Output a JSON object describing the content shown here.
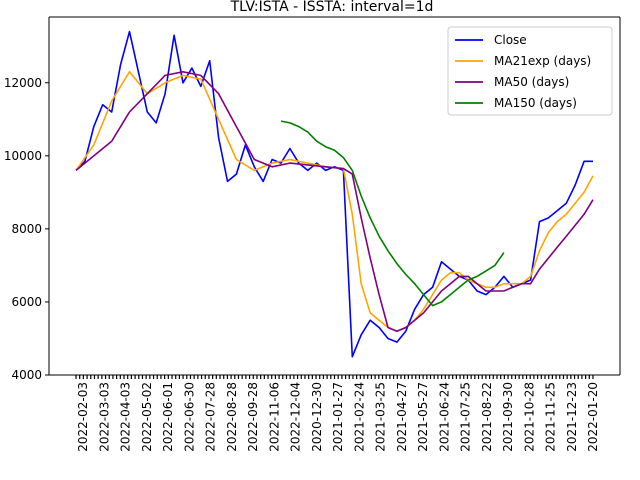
{
  "chart_data": {
    "type": "line",
    "title": "TLV:ISTA - ISSTA: interval=1d",
    "xlabel": "",
    "ylabel": "",
    "ylim": [
      4000,
      13800
    ],
    "y_ticks": [
      4000,
      6000,
      8000,
      10000,
      12000
    ],
    "y_tick_labels": [
      "4000",
      "6000",
      "8000",
      "10000",
      "12000"
    ],
    "x_tick_labels": [
      "2022-02-03",
      "2022-03-03",
      "2022-04-03",
      "2022-05-02",
      "2022-06-01",
      "2022-06-30",
      "2022-07-28",
      "2022-08-28",
      "2022-09-28",
      "2022-11-06",
      "2022-12-04",
      "2020-12-30",
      "2021-01-27",
      "2021-02-24",
      "2021-03-25",
      "2021-04-27",
      "2021-05-27",
      "2021-06-24",
      "2021-07-25",
      "2021-08-22",
      "2021-09-30",
      "2021-10-28",
      "2021-11-25",
      "2021-12-23",
      "2022-01-20"
    ],
    "grid": false,
    "legend_position": "upper right",
    "series": [
      {
        "name": "Close",
        "color": "#0000ff",
        "points": [
          [
            0,
            9600
          ],
          [
            1,
            9850
          ],
          [
            2,
            10800
          ],
          [
            3,
            11400
          ],
          [
            4,
            11200
          ],
          [
            5,
            12500
          ],
          [
            6,
            13400
          ],
          [
            7,
            12300
          ],
          [
            8,
            11200
          ],
          [
            9,
            10900
          ],
          [
            10,
            11700
          ],
          [
            11,
            13300
          ],
          [
            12,
            12000
          ],
          [
            13,
            12400
          ],
          [
            14,
            11900
          ],
          [
            15,
            12600
          ],
          [
            16,
            10500
          ],
          [
            17,
            9300
          ],
          [
            18,
            9500
          ],
          [
            19,
            10300
          ],
          [
            20,
            9700
          ],
          [
            21,
            9300
          ],
          [
            22,
            9900
          ],
          [
            23,
            9800
          ],
          [
            24,
            10200
          ],
          [
            25,
            9800
          ],
          [
            26,
            9600
          ],
          [
            27,
            9800
          ],
          [
            28,
            9600
          ],
          [
            29,
            9700
          ],
          [
            30,
            9600
          ],
          [
            31,
            4500
          ],
          [
            32,
            5100
          ],
          [
            33,
            5500
          ],
          [
            34,
            5300
          ],
          [
            35,
            5000
          ],
          [
            36,
            4900
          ],
          [
            37,
            5200
          ],
          [
            38,
            5800
          ],
          [
            39,
            6200
          ],
          [
            40,
            6400
          ],
          [
            41,
            7100
          ],
          [
            42,
            6900
          ],
          [
            43,
            6700
          ],
          [
            44,
            6600
          ],
          [
            45,
            6300
          ],
          [
            46,
            6200
          ],
          [
            47,
            6400
          ],
          [
            48,
            6700
          ],
          [
            49,
            6400
          ],
          [
            50,
            6500
          ],
          [
            51,
            6600
          ],
          [
            52,
            8200
          ],
          [
            53,
            8300
          ],
          [
            54,
            8500
          ],
          [
            55,
            8700
          ],
          [
            56,
            9200
          ],
          [
            57,
            9850
          ],
          [
            58,
            9850
          ]
        ]
      },
      {
        "name": "MA21exp (days)",
        "color": "#ffa500",
        "points": [
          [
            0,
            9600
          ],
          [
            2,
            10300
          ],
          [
            4,
            11500
          ],
          [
            6,
            12300
          ],
          [
            8,
            11700
          ],
          [
            10,
            12000
          ],
          [
            12,
            12200
          ],
          [
            14,
            12100
          ],
          [
            16,
            11000
          ],
          [
            18,
            9900
          ],
          [
            20,
            9600
          ],
          [
            22,
            9800
          ],
          [
            24,
            9900
          ],
          [
            26,
            9800
          ],
          [
            28,
            9700
          ],
          [
            30,
            9650
          ],
          [
            31,
            8400
          ],
          [
            32,
            6500
          ],
          [
            33,
            5700
          ],
          [
            34,
            5500
          ],
          [
            35,
            5300
          ],
          [
            36,
            5200
          ],
          [
            37,
            5300
          ],
          [
            38,
            5500
          ],
          [
            39,
            5800
          ],
          [
            40,
            6200
          ],
          [
            41,
            6600
          ],
          [
            42,
            6800
          ],
          [
            43,
            6800
          ],
          [
            44,
            6600
          ],
          [
            45,
            6500
          ],
          [
            46,
            6400
          ],
          [
            47,
            6400
          ],
          [
            48,
            6500
          ],
          [
            49,
            6500
          ],
          [
            50,
            6500
          ],
          [
            51,
            6700
          ],
          [
            52,
            7400
          ],
          [
            53,
            7900
          ],
          [
            54,
            8200
          ],
          [
            55,
            8400
          ],
          [
            56,
            8700
          ],
          [
            57,
            9000
          ],
          [
            58,
            9450
          ]
        ]
      },
      {
        "name": "MA50 (days)",
        "color": "#800080",
        "points": [
          [
            0,
            9600
          ],
          [
            4,
            10400
          ],
          [
            6,
            11200
          ],
          [
            8,
            11700
          ],
          [
            10,
            12200
          ],
          [
            12,
            12300
          ],
          [
            14,
            12200
          ],
          [
            16,
            11700
          ],
          [
            18,
            10800
          ],
          [
            20,
            9900
          ],
          [
            22,
            9700
          ],
          [
            24,
            9800
          ],
          [
            26,
            9750
          ],
          [
            28,
            9700
          ],
          [
            30,
            9650
          ],
          [
            31,
            9500
          ],
          [
            32,
            8300
          ],
          [
            33,
            7200
          ],
          [
            34,
            6200
          ],
          [
            35,
            5300
          ],
          [
            36,
            5200
          ],
          [
            37,
            5300
          ],
          [
            38,
            5500
          ],
          [
            39,
            5700
          ],
          [
            40,
            6000
          ],
          [
            41,
            6300
          ],
          [
            42,
            6500
          ],
          [
            43,
            6700
          ],
          [
            44,
            6700
          ],
          [
            45,
            6500
          ],
          [
            46,
            6300
          ],
          [
            47,
            6300
          ],
          [
            48,
            6300
          ],
          [
            49,
            6400
          ],
          [
            50,
            6500
          ],
          [
            51,
            6500
          ],
          [
            52,
            6900
          ],
          [
            53,
            7200
          ],
          [
            54,
            7500
          ],
          [
            55,
            7800
          ],
          [
            56,
            8100
          ],
          [
            57,
            8400
          ],
          [
            58,
            8800
          ]
        ]
      },
      {
        "name": "MA150 (days)",
        "color": "#008000",
        "points": [
          [
            23,
            10950
          ],
          [
            24,
            10900
          ],
          [
            25,
            10800
          ],
          [
            26,
            10650
          ],
          [
            27,
            10400
          ],
          [
            28,
            10250
          ],
          [
            29,
            10150
          ],
          [
            30,
            9950
          ],
          [
            31,
            9600
          ],
          [
            32,
            8900
          ],
          [
            33,
            8300
          ],
          [
            34,
            7800
          ],
          [
            35,
            7400
          ],
          [
            36,
            7050
          ],
          [
            37,
            6750
          ],
          [
            38,
            6500
          ],
          [
            39,
            6200
          ],
          [
            40,
            5900
          ],
          [
            41,
            6000
          ],
          [
            42,
            6200
          ],
          [
            43,
            6400
          ],
          [
            44,
            6600
          ],
          [
            45,
            6700
          ],
          [
            46,
            6850
          ],
          [
            47,
            7000
          ],
          [
            48,
            7350
          ]
        ]
      }
    ]
  }
}
